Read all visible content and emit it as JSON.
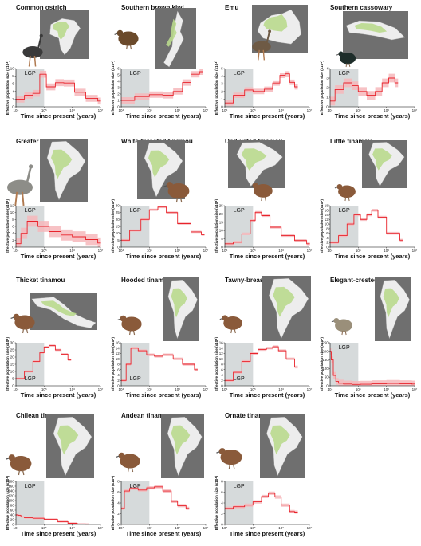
{
  "figure": {
    "background": "#ffffff",
    "line_color": "#e8232b",
    "band_color": "#f6b7bb",
    "lgp_color": "#d6dadb",
    "map_bg": "#6f6f6f",
    "map_land": "#ededed",
    "map_range": "#b9d98d",
    "map_water": "#6f8fd9"
  },
  "chart_data": [
    {
      "id": "ostrich",
      "type": "line",
      "title": "Common ostrich",
      "map": "africa",
      "bird": "ostrich-icon",
      "xlabel": "Time since present (years)",
      "ylabel": "Effective population size (x10⁴)",
      "lgp_label": "LGP",
      "lgp_label_pos": "top",
      "xscale": "log",
      "xlim": [
        10000,
        10000000
      ],
      "xticks": [
        "10⁴",
        "10⁵",
        "10⁶",
        "10⁷"
      ],
      "ylim": [
        0,
        10
      ],
      "yticks": [
        0,
        2,
        4,
        6,
        8,
        10
      ],
      "lgp": [
        10000,
        100000
      ],
      "band": 0.9,
      "series": [
        {
          "x": [
            10000,
            20000,
            40000,
            70000,
            120000,
            250000,
            500000,
            1200000,
            3000000,
            8000000
          ],
          "y": [
            2,
            3,
            3.5,
            8.5,
            5.2,
            6.3,
            6.2,
            3.8,
            2.2,
            1.5
          ]
        }
      ]
    },
    {
      "id": "kiwi",
      "type": "line",
      "title": "Southern brown kiwi",
      "map": "new-zealand",
      "bird": "kiwi-icon",
      "xlabel": "Time since present (years)",
      "ylabel": "Effective population size (x10⁴)",
      "lgp_label": "LGP",
      "lgp_label_pos": "top",
      "xscale": "log",
      "xlim": [
        10000,
        10000000
      ],
      "xticks": [
        "10⁴",
        "10⁵",
        "10⁶",
        "10⁷"
      ],
      "ylim": [
        0,
        6
      ],
      "yticks": [
        0,
        1,
        2,
        3,
        4,
        5,
        6
      ],
      "lgp": [
        10000,
        100000
      ],
      "band": 0.5,
      "series": [
        {
          "x": [
            10000,
            30000,
            100000,
            300000,
            700000,
            1500000,
            3000000,
            6000000
          ],
          "y": [
            1,
            1.6,
            1.9,
            1.8,
            2.4,
            3.8,
            5.1,
            5.5
          ]
        }
      ]
    },
    {
      "id": "emu",
      "type": "line",
      "title": "Emu",
      "map": "australia",
      "bird": "emu-icon",
      "xlabel": "Time since present (years)",
      "ylabel": "Effective population size (x10⁴)",
      "lgp_label": "LGP",
      "lgp_label_pos": "top",
      "xscale": "log",
      "xlim": [
        10000,
        10000000
      ],
      "xticks": [
        "10⁴",
        "10⁵",
        "10⁶",
        "10⁷"
      ],
      "ylim": [
        0,
        5
      ],
      "yticks": [
        0,
        1,
        2,
        3,
        4,
        5
      ],
      "lgp": [
        10000,
        100000
      ],
      "band": 0.35,
      "series": [
        {
          "x": [
            10000,
            20000,
            50000,
            100000,
            250000,
            500000,
            900000,
            1400000,
            2000000,
            3000000
          ],
          "y": [
            0.5,
            1.5,
            2.2,
            2,
            2.3,
            3.1,
            4.1,
            4.3,
            3.2,
            2.6
          ]
        }
      ]
    },
    {
      "id": "cassowary",
      "type": "line",
      "title": "Southern cassowary",
      "map": "new-guinea",
      "bird": "cassowary-icon",
      "xlabel": "Time since present (years)",
      "ylabel": "Effective population size (x10⁴)",
      "lgp_label": "LGP",
      "lgp_label_pos": "top",
      "xscale": "log",
      "xlim": [
        10000,
        10000000
      ],
      "xticks": [
        "10⁴",
        "10⁵",
        "10⁶",
        "10⁷"
      ],
      "ylim": [
        0,
        4
      ],
      "yticks": [
        0,
        1,
        2,
        3,
        4
      ],
      "lgp": [
        10000,
        100000
      ],
      "band": 0.45,
      "series": [
        {
          "x": [
            10000,
            15000,
            30000,
            60000,
            100000,
            200000,
            400000,
            700000,
            1200000,
            2000000
          ],
          "y": [
            0.6,
            1.8,
            2.5,
            2.2,
            1.6,
            1.2,
            1.6,
            2.5,
            3,
            2.5
          ]
        }
      ]
    },
    {
      "id": "rhea",
      "type": "line",
      "title": "Greater rhea",
      "map": "south-america",
      "bird": "rhea-icon",
      "xlabel": "Time since present (years)",
      "ylabel": "Effective population size (x10⁴)",
      "lgp_label": "LGP",
      "lgp_label_pos": "top",
      "xscale": "log",
      "xlim": [
        10000,
        10000000
      ],
      "xticks": [
        "10⁴",
        "10⁵",
        "10⁶",
        "10⁷"
      ],
      "ylim": [
        0,
        12
      ],
      "yticks": [
        0,
        2,
        4,
        6,
        8,
        10,
        12
      ],
      "lgp": [
        10000,
        100000
      ],
      "band": 1.6,
      "series": [
        {
          "x": [
            10000,
            15000,
            25000,
            60000,
            150000,
            400000,
            1000000,
            3000000,
            8000000
          ],
          "y": [
            1,
            4,
            7.5,
            6,
            4.5,
            3.5,
            3,
            2.2,
            1.2
          ]
        }
      ]
    },
    {
      "id": "wt-tinamou",
      "type": "line",
      "title": "White-throated tinamou",
      "map": "south-america",
      "bird": "tinamou-icon",
      "xlabel": "Time since present (years)",
      "ylabel": "Effective population size (x10⁴)",
      "lgp_label": "LGP",
      "lgp_label_pos": "top",
      "xscale": "log",
      "xlim": [
        10000,
        10000000
      ],
      "xticks": [
        "10⁴",
        "10⁵",
        "10⁶",
        "10⁷"
      ],
      "ylim": [
        0,
        30
      ],
      "yticks": [
        0,
        5,
        10,
        15,
        20,
        25,
        30
      ],
      "lgp": [
        10000,
        100000
      ],
      "band": 0.8,
      "series": [
        {
          "x": [
            10000,
            20000,
            50000,
            100000,
            200000,
            400000,
            1000000,
            3000000,
            7000000
          ],
          "y": [
            5,
            12,
            20,
            27,
            29,
            25,
            17,
            11,
            9
          ]
        }
      ]
    },
    {
      "id": "undulated",
      "type": "line",
      "title": "Undulated tinamou",
      "map": "south-america",
      "bird": "tinamou-icon",
      "xlabel": "Time since present (years)",
      "ylabel": "Effective population size (x10⁴)",
      "lgp_label": "LGP",
      "lgp_label_pos": "top",
      "xscale": "log",
      "xlim": [
        10000,
        10000000
      ],
      "xticks": [
        "10⁴",
        "10⁵",
        "10⁶",
        "10⁷"
      ],
      "ylim": [
        0,
        25
      ],
      "yticks": [
        0,
        5,
        10,
        15,
        20,
        25
      ],
      "lgp": [
        10000,
        100000
      ],
      "band": 0.8,
      "series": [
        {
          "x": [
            10000,
            20000,
            40000,
            80000,
            120000,
            200000,
            400000,
            1000000,
            3000000,
            8000000
          ],
          "y": [
            2,
            3,
            8,
            16,
            21,
            19,
            12,
            7,
            4,
            2
          ]
        }
      ]
    },
    {
      "id": "little",
      "type": "line",
      "title": "Little tinamou",
      "map": "south-america",
      "bird": "tinamou-icon",
      "xlabel": "Time since present (years)",
      "ylabel": "Effective population size (x10⁴)",
      "lgp_label": "LGP",
      "lgp_label_pos": "top",
      "xscale": "log",
      "xlim": [
        10000,
        10000000
      ],
      "xticks": [
        "10⁴",
        "10⁵",
        "10⁶",
        "10⁷"
      ],
      "ylim": [
        0,
        18
      ],
      "yticks": [
        0,
        2,
        4,
        6,
        8,
        10,
        12,
        14,
        16,
        18
      ],
      "lgp": [
        10000,
        100000
      ],
      "band": 0.6,
      "series": [
        {
          "x": [
            10000,
            20000,
            40000,
            70000,
            120000,
            200000,
            300000,
            500000,
            1000000,
            3000000
          ],
          "y": [
            2,
            5,
            10,
            14,
            12,
            14,
            16,
            13,
            6,
            3
          ]
        }
      ]
    },
    {
      "id": "thicket",
      "type": "line",
      "title": "Thicket tinamou",
      "map": "central-america",
      "bird": "tinamou-icon",
      "xlabel": "Time since present (years)",
      "ylabel": "Effective population size (x10⁴)",
      "lgp_label": "LGP",
      "lgp_label_pos": "bottom",
      "xscale": "log",
      "xlim": [
        10000,
        10000000
      ],
      "xticks": [
        "10⁴",
        "10⁵",
        "10⁶",
        "10⁷"
      ],
      "ylim": [
        0,
        30
      ],
      "yticks": [
        0,
        5,
        10,
        15,
        20,
        25,
        30
      ],
      "lgp": [
        10000,
        100000
      ],
      "band": 0.8,
      "series": [
        {
          "x": [
            10000,
            20000,
            40000,
            70000,
            100000,
            150000,
            250000,
            400000,
            700000
          ],
          "y": [
            5,
            10,
            17,
            23,
            27,
            28,
            25,
            22,
            18
          ]
        }
      ]
    },
    {
      "id": "hooded",
      "type": "line",
      "title": "Hooded tinamou",
      "map": "south-america",
      "bird": "tinamou-icon",
      "xlabel": "Time since present (years)",
      "ylabel": "Effective population size (x10⁴)",
      "lgp_label": "LGP",
      "lgp_label_pos": "bottom",
      "xscale": "log",
      "xlim": [
        10000,
        10000000
      ],
      "xticks": [
        "10⁴",
        "10⁵",
        "10⁶",
        "10⁷"
      ],
      "ylim": [
        0,
        16
      ],
      "yticks": [
        0,
        2,
        4,
        6,
        8,
        10,
        12,
        14,
        16
      ],
      "lgp": [
        10000,
        100000
      ],
      "band": 0.5,
      "series": [
        {
          "x": [
            10000,
            15000,
            22000,
            40000,
            80000,
            150000,
            300000,
            700000,
            1500000,
            4000000
          ],
          "y": [
            2,
            8,
            14,
            13,
            11.5,
            11,
            11.5,
            10,
            8,
            6
          ]
        }
      ]
    },
    {
      "id": "tawny",
      "type": "line",
      "title": "Tawny-breasted tinamou",
      "map": "south-america",
      "bird": "tinamou-icon",
      "xlabel": "Time since present (years)",
      "ylabel": "Effective population size (x10⁴)",
      "lgp_label": "LGP",
      "lgp_label_pos": "bottom",
      "xscale": "log",
      "xlim": [
        10000,
        10000000
      ],
      "xticks": [
        "10⁴",
        "10⁵",
        "10⁶",
        "10⁷"
      ],
      "ylim": [
        0,
        16
      ],
      "yticks": [
        0,
        2,
        4,
        6,
        8,
        10,
        12,
        14,
        16
      ],
      "lgp": [
        10000,
        100000
      ],
      "band": 0.5,
      "series": [
        {
          "x": [
            10000,
            20000,
            40000,
            80000,
            150000,
            300000,
            500000,
            800000,
            1500000,
            3000000
          ],
          "y": [
            2,
            5,
            9,
            12,
            13.5,
            14,
            14.5,
            13,
            10,
            7
          ]
        }
      ]
    },
    {
      "id": "elegant",
      "type": "line",
      "title": "Elegant-crested tinamou",
      "map": "south-america",
      "bird": "crested-tinamou-icon",
      "xlabel": "Time since present (years)",
      "ylabel": "Effective population size (x10⁴)",
      "lgp_label": "LGP",
      "lgp_label_pos": "top",
      "xscale": "log",
      "xlim": [
        10000,
        10000000
      ],
      "xticks": [
        "10⁴",
        "10⁵",
        "10⁶",
        "10⁷"
      ],
      "ylim": [
        0,
        250
      ],
      "yticks": [
        0,
        50,
        100,
        150,
        200,
        250
      ],
      "lgp": [
        10000,
        100000
      ],
      "band": 20,
      "series": [
        {
          "x": [
            10000,
            11000,
            13000,
            16000,
            20000,
            30000,
            60000,
            120000,
            300000,
            1000000,
            3000000,
            8000000
          ],
          "y": [
            200,
            150,
            60,
            25,
            15,
            10,
            8,
            9,
            12,
            14,
            12,
            10
          ]
        }
      ]
    },
    {
      "id": "chilean",
      "type": "line",
      "title": "Chilean tinamou",
      "map": "south-america",
      "bird": "tinamou-icon",
      "xlabel": "Time since present (years)",
      "ylabel": "Effective population size (x10⁴)",
      "lgp_label": "LGP",
      "lgp_label_pos": "top",
      "xscale": "log",
      "xlim": [
        10000,
        10000000
      ],
      "xticks": [
        "10⁴",
        "10⁵",
        "10⁶",
        "10⁷"
      ],
      "ylim": [
        0,
        180
      ],
      "yticks": [
        0,
        20,
        40,
        60,
        80,
        100,
        120,
        140,
        160,
        180
      ],
      "lgp": [
        10000,
        100000
      ],
      "band": 4,
      "series": [
        {
          "x": [
            10000,
            12000,
            15000,
            20000,
            40000,
            100000,
            300000,
            700000,
            1500000,
            3000000
          ],
          "y": [
            40,
            38,
            32,
            28,
            26,
            22,
            12,
            5,
            2,
            1
          ]
        }
      ]
    },
    {
      "id": "andean",
      "type": "line",
      "title": "Andean tinamou",
      "map": "south-america",
      "bird": "tinamou-icon",
      "xlabel": "Time since present (years)",
      "ylabel": "Effective population size (x10⁴)",
      "lgp_label": "LGP",
      "lgp_label_pos": "top",
      "xscale": "log",
      "xlim": [
        10000,
        10000000
      ],
      "xticks": [
        "10⁴",
        "10⁵",
        "10⁶",
        "10⁷"
      ],
      "ylim": [
        0,
        8
      ],
      "yticks": [
        0,
        2,
        4,
        6,
        8
      ],
      "lgp": [
        10000,
        100000
      ],
      "band": 0.3,
      "series": [
        {
          "x": [
            10000,
            13000,
            20000,
            40000,
            80000,
            150000,
            300000,
            600000,
            1000000,
            2000000
          ],
          "y": [
            3,
            6.2,
            6.7,
            6.4,
            6.8,
            7,
            6.2,
            4.3,
            3.5,
            3
          ]
        }
      ]
    },
    {
      "id": "ornate",
      "type": "line",
      "title": "Ornate tinamou",
      "map": "south-america",
      "bird": "tinamou-icon",
      "xlabel": "Time since present (years)",
      "ylabel": "Effective population size (x10⁴)",
      "lgp_label": "LGP",
      "lgp_label_pos": "top",
      "xscale": "log",
      "xlim": [
        10000,
        10000000
      ],
      "xticks": [
        "10⁴",
        "10⁵",
        "10⁶",
        "10⁷"
      ],
      "ylim": [
        0,
        8
      ],
      "yticks": [
        0,
        2,
        4,
        6,
        8
      ],
      "lgp": [
        10000,
        100000
      ],
      "band": 0.3,
      "series": [
        {
          "x": [
            10000,
            20000,
            50000,
            100000,
            200000,
            350000,
            600000,
            1000000,
            2000000,
            3000000
          ],
          "y": [
            3,
            3.3,
            3.6,
            4.2,
            5.2,
            5.8,
            5.1,
            3.6,
            2.4,
            2.3
          ]
        }
      ]
    }
  ]
}
